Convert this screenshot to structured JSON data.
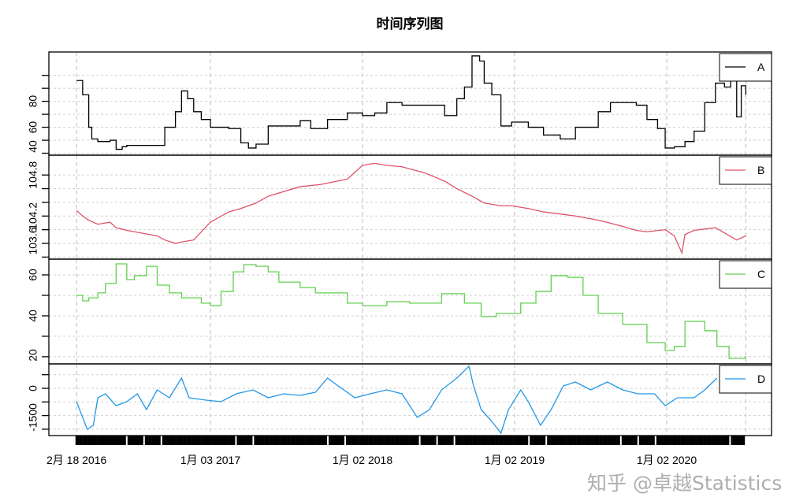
{
  "chart_data": {
    "type": "line",
    "title": "时间序列图",
    "xlabel": "",
    "x_unit": "decimal year",
    "x_ticks": [
      {
        "value": 2016.12,
        "label": "2月 18 2016"
      },
      {
        "value": 2017.0,
        "label": "1月 03 2017"
      },
      {
        "value": 2018.0,
        "label": "1月 02 2018"
      },
      {
        "value": 2019.0,
        "label": "1月 02 2019"
      },
      {
        "value": 2020.0,
        "label": "1月 02 2020"
      }
    ],
    "grid": true,
    "legend_placement": "top-right of each panel",
    "panels": [
      {
        "name": "A",
        "color": "#000000",
        "step": true,
        "ylim": [
          38.5,
          118
        ],
        "yticks": [
          40,
          50,
          60,
          70,
          80,
          90,
          100
        ],
        "ylabels": [
          "40",
          "60",
          "80"
        ],
        "x": [
          2016.12,
          2016.16,
          2016.2,
          2016.22,
          2016.26,
          2016.34,
          2016.38,
          2016.42,
          2016.45,
          2016.65,
          2016.7,
          2016.77,
          2016.81,
          2016.85,
          2016.89,
          2016.94,
          2017.0,
          2017.12,
          2017.2,
          2017.25,
          2017.3,
          2017.38,
          2017.59,
          2017.66,
          2017.72,
          2017.77,
          2017.9,
          2018.0,
          2018.08,
          2018.16,
          2018.26,
          2018.41,
          2018.54,
          2018.62,
          2018.67,
          2018.72,
          2018.77,
          2018.8,
          2018.85,
          2018.91,
          2018.98,
          2019.09,
          2019.19,
          2019.3,
          2019.4,
          2019.55,
          2019.63,
          2019.71,
          2019.8,
          2019.87,
          2019.94,
          2019.99,
          2020.05,
          2020.12,
          2020.18,
          2020.25,
          2020.32,
          2020.38,
          2020.42,
          2020.46,
          2020.49,
          2020.52
        ],
        "values": [
          96,
          85,
          60,
          51,
          49,
          50,
          43,
          45,
          46,
          46,
          60,
          72,
          88,
          82,
          72,
          66,
          60,
          59,
          48,
          44,
          47,
          61,
          65,
          59,
          59,
          66,
          71,
          69,
          71,
          79,
          77,
          77,
          69,
          82,
          91,
          115,
          111,
          94,
          85,
          61,
          64,
          60,
          54,
          51,
          60,
          72,
          79,
          79,
          77,
          66,
          59,
          44,
          45,
          49,
          57,
          79,
          94,
          91,
          97,
          68,
          92,
          85
        ]
      },
      {
        "name": "B",
        "color": "#DF536B",
        "step": false,
        "ylim": [
          103.57,
          105.09
        ],
        "yticks": [
          103.6,
          103.8,
          104.0,
          104.2,
          104.4,
          104.6,
          104.8
        ],
        "ylabels": [
          "103.6",
          "104.2",
          "104.8"
        ],
        "x": [
          2016.12,
          2016.16,
          2016.2,
          2016.26,
          2016.34,
          2016.38,
          2016.45,
          2016.65,
          2016.7,
          2016.77,
          2016.81,
          2016.89,
          2016.94,
          2017.0,
          2017.12,
          2017.2,
          2017.3,
          2017.38,
          2017.59,
          2017.72,
          2017.9,
          2018.0,
          2018.08,
          2018.16,
          2018.26,
          2018.41,
          2018.54,
          2018.62,
          2018.72,
          2018.8,
          2018.91,
          2018.98,
          2019.09,
          2019.19,
          2019.3,
          2019.4,
          2019.55,
          2019.71,
          2019.8,
          2019.87,
          2019.99,
          2020.05,
          2020.1,
          2020.12,
          2020.18,
          2020.32,
          2020.46,
          2020.52
        ],
        "values": [
          104.28,
          104.2,
          104.14,
          104.08,
          104.11,
          104.03,
          103.99,
          103.91,
          103.85,
          103.8,
          103.82,
          103.85,
          103.97,
          104.11,
          104.26,
          104.31,
          104.39,
          104.49,
          104.63,
          104.66,
          104.74,
          104.94,
          104.97,
          104.94,
          104.92,
          104.83,
          104.71,
          104.6,
          104.49,
          104.39,
          104.35,
          104.35,
          104.31,
          104.26,
          104.23,
          104.2,
          104.14,
          104.05,
          103.99,
          103.97,
          104.0,
          103.91,
          103.66,
          103.93,
          103.99,
          104.03,
          103.85,
          103.91
        ]
      },
      {
        "name": "C",
        "color": "#61D04F",
        "step": true,
        "ylim": [
          16.5,
          67.7
        ],
        "yticks": [
          20,
          30,
          40,
          50,
          60
        ],
        "ylabels": [
          "20",
          "40",
          "60"
        ],
        "x": [
          2016.12,
          2016.16,
          2016.2,
          2016.26,
          2016.31,
          2016.38,
          2016.45,
          2016.5,
          2016.58,
          2016.65,
          2016.73,
          2016.81,
          2016.94,
          2017.0,
          2017.07,
          2017.15,
          2017.22,
          2017.3,
          2017.38,
          2017.45,
          2017.59,
          2017.69,
          2017.79,
          2017.9,
          2018.0,
          2018.16,
          2018.31,
          2018.52,
          2018.67,
          2018.78,
          2018.88,
          2019.04,
          2019.14,
          2019.24,
          2019.35,
          2019.45,
          2019.55,
          2019.71,
          2019.87,
          2019.99,
          2020.05,
          2020.12,
          2020.18,
          2020.25,
          2020.33,
          2020.41,
          2020.52
        ],
        "values": [
          50,
          47.3,
          48.8,
          51.2,
          55.8,
          65.4,
          57.7,
          59.6,
          64.2,
          55,
          51.2,
          48.8,
          46.2,
          45,
          51.9,
          61.5,
          65,
          64.2,
          61.5,
          56.5,
          53.8,
          51.2,
          51.2,
          46.2,
          45,
          46.9,
          46.2,
          50.8,
          46.2,
          39.6,
          41.2,
          46.2,
          51.9,
          59.6,
          58.8,
          50,
          41.2,
          35.8,
          26.9,
          23.1,
          25,
          37.3,
          37.3,
          32.7,
          25,
          19.2,
          20.4
        ]
      },
      {
        "name": "D",
        "color": "#2297E6",
        "step": false,
        "ylim": [
          -1734,
          896
        ],
        "yticks": [
          -1500,
          -1000,
          -500,
          0,
          500
        ],
        "ylabels": [
          "-1500",
          "0"
        ],
        "x": [
          2016.12,
          2016.16,
          2016.19,
          2016.23,
          2016.26,
          2016.31,
          2016.38,
          2016.45,
          2016.52,
          2016.58,
          2016.65,
          2016.73,
          2016.81,
          2016.86,
          2016.97,
          2017.07,
          2017.17,
          2017.28,
          2017.38,
          2017.48,
          2017.59,
          2017.69,
          2017.77,
          2017.84,
          2017.95,
          2018.05,
          2018.16,
          2018.26,
          2018.36,
          2018.44,
          2018.52,
          2018.62,
          2018.7,
          2018.73,
          2018.78,
          2018.85,
          2018.91,
          2018.96,
          2019.04,
          2019.09,
          2019.17,
          2019.24,
          2019.32,
          2019.4,
          2019.5,
          2019.61,
          2019.71,
          2019.81,
          2019.92,
          2019.99,
          2020.07,
          2020.18,
          2020.25,
          2020.33
        ],
        "values": [
          -491,
          -1069,
          -1503,
          -1358,
          -347,
          -202,
          -636,
          -491,
          -202,
          -780,
          -58,
          -347,
          376,
          -347,
          -434,
          -491,
          -202,
          -58,
          -347,
          -202,
          -260,
          -145,
          376,
          87,
          -347,
          -202,
          -58,
          -202,
          -1069,
          -780,
          -58,
          376,
          809,
          87,
          -780,
          -1214,
          -1647,
          -780,
          -58,
          -491,
          -1358,
          -780,
          87,
          231,
          -58,
          231,
          -58,
          -202,
          -202,
          -636,
          -347,
          -347,
          -58,
          376
        ]
      }
    ]
  },
  "watermark": "知乎 @卓越Statistics"
}
